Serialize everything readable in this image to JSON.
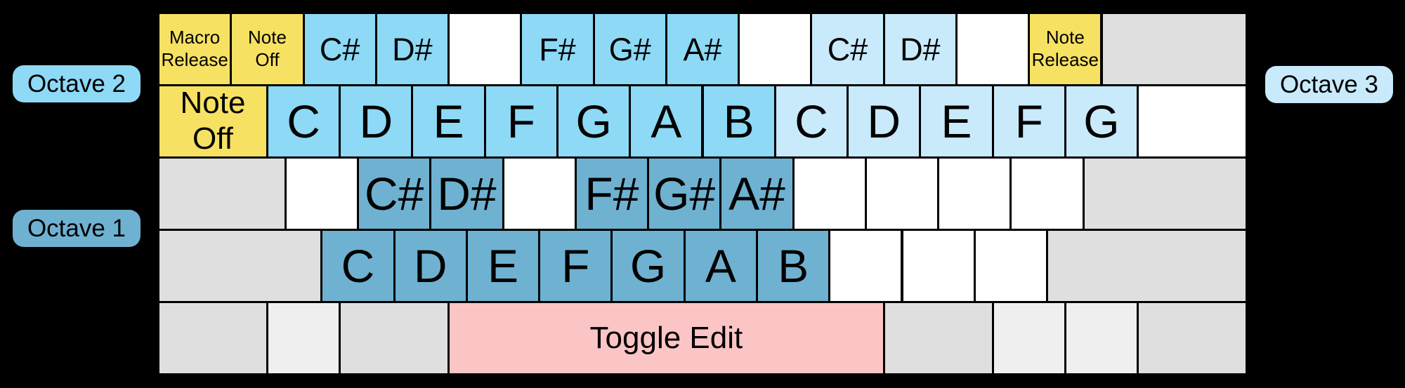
{
  "colors": {
    "background": "#000000",
    "border": "#000000",
    "text": "#000000",
    "yellow": "#F6E163",
    "sky": "#8DD9F6",
    "light": "#C8EAFB",
    "steel": "#6FB1D1",
    "pink": "#FCC5C5",
    "gray": "#DFDFDF",
    "graylight": "#EFEFEF",
    "white": "#FFFFFF"
  },
  "legend": {
    "octave_2": "Octave 2",
    "octave_1": "Octave 1",
    "octave_3": "Octave 3"
  },
  "keyboard": {
    "rows": [
      {
        "keys": [
          {
            "name": "key-grave-macro-release",
            "label": "Macro\nRelease",
            "color": "yellow",
            "w": 1,
            "size": "xs"
          },
          {
            "name": "key-1-note-off",
            "label": "Note\nOff",
            "color": "yellow",
            "w": 1,
            "size": "xs"
          },
          {
            "name": "key-2-csharp-octave2",
            "label": "C#",
            "color": "sky",
            "w": 1,
            "size": "sm"
          },
          {
            "name": "key-3-dsharp-octave2",
            "label": "D#",
            "color": "sky",
            "w": 1,
            "size": "sm"
          },
          {
            "name": "key-4-unassigned",
            "label": "",
            "color": "white",
            "w": 1
          },
          {
            "name": "key-5-fsharp-octave2",
            "label": "F#",
            "color": "sky",
            "w": 1,
            "size": "sm"
          },
          {
            "name": "key-6-gsharp-octave2",
            "label": "G#",
            "color": "sky",
            "w": 1,
            "size": "sm"
          },
          {
            "name": "key-7-asharp-octave2",
            "label": "A#",
            "color": "sky",
            "w": 1,
            "size": "sm"
          },
          {
            "name": "key-8-unassigned",
            "label": "",
            "color": "white",
            "w": 1
          },
          {
            "name": "key-9-csharp-octave3",
            "label": "C#",
            "color": "light",
            "w": 1,
            "size": "sm"
          },
          {
            "name": "key-0-dsharp-octave3",
            "label": "D#",
            "color": "light",
            "w": 1,
            "size": "sm"
          },
          {
            "name": "key-minus-unassigned",
            "label": "",
            "color": "white",
            "w": 1
          },
          {
            "name": "key-equals-note-release",
            "label": "Note\nRelease",
            "color": "yellow",
            "w": 1,
            "size": "xs"
          },
          {
            "name": "key-backspace",
            "label": "",
            "color": "gray",
            "w": 2
          }
        ]
      },
      {
        "keys": [
          {
            "name": "key-tab-note-off",
            "label": "Note\nOff",
            "color": "yellow",
            "w": 1.5,
            "size": "md"
          },
          {
            "name": "key-q-c-octave2",
            "label": "C",
            "color": "sky",
            "w": 1
          },
          {
            "name": "key-w-d-octave2",
            "label": "D",
            "color": "sky",
            "w": 1
          },
          {
            "name": "key-e-e-octave2",
            "label": "E",
            "color": "sky",
            "w": 1
          },
          {
            "name": "key-r-f-octave2",
            "label": "F",
            "color": "sky",
            "w": 1
          },
          {
            "name": "key-t-g-octave2",
            "label": "G",
            "color": "sky",
            "w": 1
          },
          {
            "name": "key-y-a-octave2",
            "label": "A",
            "color": "sky",
            "w": 1
          },
          {
            "name": "key-u-b-octave2",
            "label": "B",
            "color": "sky",
            "w": 1
          },
          {
            "name": "key-i-c-octave3",
            "label": "C",
            "color": "light",
            "w": 1
          },
          {
            "name": "key-o-d-octave3",
            "label": "D",
            "color": "light",
            "w": 1
          },
          {
            "name": "key-p-e-octave3",
            "label": "E",
            "color": "light",
            "w": 1
          },
          {
            "name": "key-lbracket-f-octave3",
            "label": "F",
            "color": "light",
            "w": 1
          },
          {
            "name": "key-rbracket-g-octave3",
            "label": "G",
            "color": "light",
            "w": 1
          },
          {
            "name": "key-backslash-unassigned",
            "label": "",
            "color": "white",
            "w": 1.5
          }
        ]
      },
      {
        "keys": [
          {
            "name": "key-capslock",
            "label": "",
            "color": "gray",
            "w": 1.75
          },
          {
            "name": "key-a-unassigned",
            "label": "",
            "color": "white",
            "w": 1
          },
          {
            "name": "key-s-csharp-octave1",
            "label": "C#",
            "color": "steel",
            "w": 1
          },
          {
            "name": "key-d-dsharp-octave1",
            "label": "D#",
            "color": "steel",
            "w": 1
          },
          {
            "name": "key-f-unassigned",
            "label": "",
            "color": "white",
            "w": 1
          },
          {
            "name": "key-g-fsharp-octave1",
            "label": "F#",
            "color": "steel",
            "w": 1
          },
          {
            "name": "key-h-gsharp-octave1",
            "label": "G#",
            "color": "steel",
            "w": 1
          },
          {
            "name": "key-j-asharp-octave1",
            "label": "A#",
            "color": "steel",
            "w": 1
          },
          {
            "name": "key-k-unassigned",
            "label": "",
            "color": "white",
            "w": 1
          },
          {
            "name": "key-l-unassigned",
            "label": "",
            "color": "white",
            "w": 1
          },
          {
            "name": "key-semicolon-unassigned",
            "label": "",
            "color": "white",
            "w": 1
          },
          {
            "name": "key-quote-unassigned",
            "label": "",
            "color": "white",
            "w": 1
          },
          {
            "name": "key-enter",
            "label": "",
            "color": "gray",
            "w": 2.25
          }
        ]
      },
      {
        "keys": [
          {
            "name": "key-left-shift",
            "label": "",
            "color": "gray",
            "w": 2.25
          },
          {
            "name": "key-z-c-octave1",
            "label": "C",
            "color": "steel",
            "w": 1
          },
          {
            "name": "key-x-d-octave1",
            "label": "D",
            "color": "steel",
            "w": 1
          },
          {
            "name": "key-c-e-octave1",
            "label": "E",
            "color": "steel",
            "w": 1
          },
          {
            "name": "key-v-f-octave1",
            "label": "F",
            "color": "steel",
            "w": 1
          },
          {
            "name": "key-b-g-octave1",
            "label": "G",
            "color": "steel",
            "w": 1
          },
          {
            "name": "key-n-a-octave1",
            "label": "A",
            "color": "steel",
            "w": 1
          },
          {
            "name": "key-m-b-octave1",
            "label": "B",
            "color": "steel",
            "w": 1
          },
          {
            "name": "key-comma-unassigned",
            "label": "",
            "color": "white",
            "w": 1
          },
          {
            "name": "key-period-unassigned",
            "label": "",
            "color": "white",
            "w": 1
          },
          {
            "name": "key-slash-unassigned",
            "label": "",
            "color": "white",
            "w": 1
          },
          {
            "name": "key-right-shift",
            "label": "",
            "color": "gray",
            "w": 2.75
          }
        ]
      },
      {
        "keys": [
          {
            "name": "key-left-ctrl",
            "label": "",
            "color": "gray",
            "w": 1.5
          },
          {
            "name": "key-left-super",
            "label": "",
            "color": "graylight",
            "w": 1
          },
          {
            "name": "key-left-alt",
            "label": "",
            "color": "gray",
            "w": 1.5
          },
          {
            "name": "key-space-toggle-edit",
            "label": "Toggle Edit",
            "color": "pink",
            "w": 6,
            "size": "md"
          },
          {
            "name": "key-right-alt",
            "label": "",
            "color": "gray",
            "w": 1.5
          },
          {
            "name": "key-right-super",
            "label": "",
            "color": "graylight",
            "w": 1
          },
          {
            "name": "key-menu",
            "label": "",
            "color": "graylight",
            "w": 1
          },
          {
            "name": "key-right-ctrl",
            "label": "",
            "color": "gray",
            "w": 1.5
          }
        ]
      }
    ]
  }
}
